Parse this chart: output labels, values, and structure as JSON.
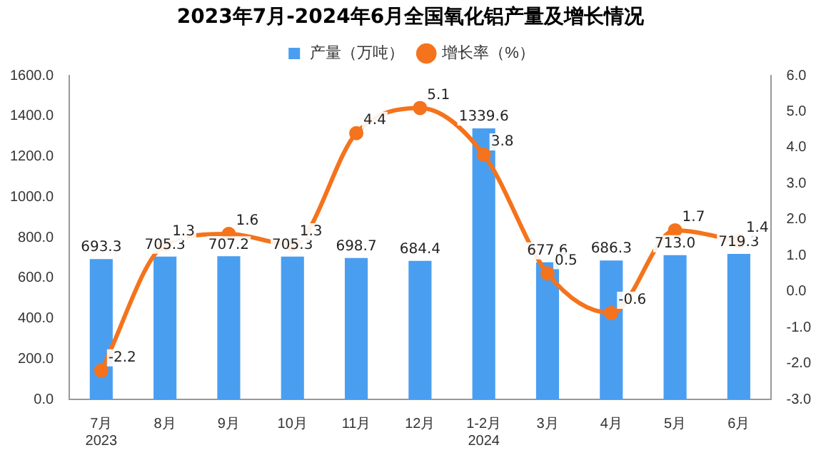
{
  "chart_data": {
    "type": "bar",
    "title": "2023年7月-2024年6月全国氧化铝产量及增长情况",
    "categories": [
      "7月\n2023",
      "8月",
      "9月",
      "10月",
      "11月",
      "12月",
      "1-2月\n2024",
      "3月",
      "4月",
      "5月",
      "6月"
    ],
    "series": [
      {
        "name": "产量（万吨）",
        "color": "#4a9ef0",
        "values": [
          693.3,
          705.3,
          707.2,
          705.3,
          698.7,
          684.4,
          1339.6,
          677.6,
          686.3,
          713.0,
          719.3
        ],
        "value_labels": [
          "693.3",
          "705.3",
          "707.2",
          "705.3",
          "698.7",
          "684.4",
          "1339.6",
          "677.6",
          "686.3",
          "713.0",
          "719.3"
        ]
      },
      {
        "name": "增长率（%）",
        "type": "line",
        "axis": "y2",
        "color": "#f4731c",
        "values": [
          -2.2,
          1.3,
          1.6,
          1.3,
          4.4,
          5.1,
          3.8,
          0.5,
          -0.6,
          1.7,
          1.4
        ]
      }
    ],
    "ylim": [
      0,
      1600
    ],
    "yticks": [
      {
        "value": 0,
        "label": "0.0"
      },
      {
        "value": 200,
        "label": "200.0"
      },
      {
        "value": 400,
        "label": "400.0"
      },
      {
        "value": 600,
        "label": "600.0"
      },
      {
        "value": 800,
        "label": "800.0"
      },
      {
        "value": 1000,
        "label": "1000.0"
      },
      {
        "value": 1200,
        "label": "1200.0"
      },
      {
        "value": 1400,
        "label": "1400.0"
      },
      {
        "value": 1600,
        "label": "1600.0"
      }
    ],
    "y2lim": [
      -3,
      6
    ],
    "y2ticks": [
      {
        "value": -3,
        "label": "-3.0"
      },
      {
        "value": -2,
        "label": "-2.0"
      },
      {
        "value": -1,
        "label": "-1.0"
      },
      {
        "value": 0,
        "label": "0.0"
      },
      {
        "value": 1,
        "label": "1.0"
      },
      {
        "value": 2,
        "label": "2.0"
      },
      {
        "value": 3,
        "label": "3.0"
      },
      {
        "value": 4,
        "label": "4.0"
      },
      {
        "value": 5,
        "label": "5.0"
      },
      {
        "value": 6,
        "label": "6.0"
      }
    ],
    "data_labels": true,
    "grid": false,
    "legend": "top",
    "marker": "circle",
    "line_style": "solid"
  }
}
